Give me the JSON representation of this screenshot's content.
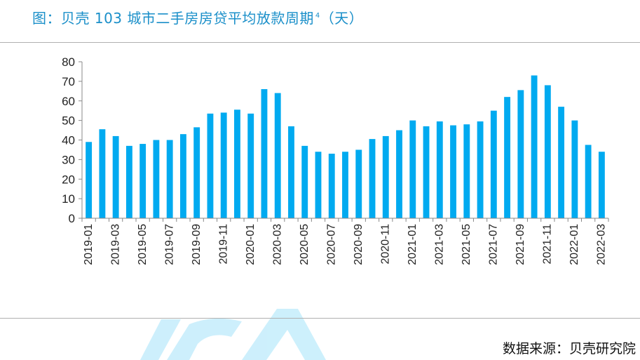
{
  "title": {
    "text": "图：贝壳 103 城市二手房房贷平均放款周期",
    "footnote": "4",
    "unit": "（天）"
  },
  "source": "数据来源：贝壳研究院",
  "colors": {
    "bar": "#00aaf0",
    "title": "#1a8fc9",
    "watermark": "#c8eefc"
  },
  "chart_data": {
    "type": "bar",
    "title": "贝壳 103 城市二手房房贷平均放款周期（天）",
    "xlabel": "",
    "ylabel": "天",
    "ylim": [
      0,
      80
    ],
    "yticks": [
      0,
      10,
      20,
      30,
      40,
      50,
      60,
      70,
      80
    ],
    "grid": false,
    "categories": [
      "2019-01",
      "2019-02",
      "2019-03",
      "2019-04",
      "2019-05",
      "2019-06",
      "2019-07",
      "2019-08",
      "2019-09",
      "2019-10",
      "2019-11",
      "2019-12",
      "2020-01",
      "2020-02",
      "2020-03",
      "2020-04",
      "2020-05",
      "2020-06",
      "2020-07",
      "2020-08",
      "2020-09",
      "2020-10",
      "2020-11",
      "2020-12",
      "2021-01",
      "2021-02",
      "2021-03",
      "2021-04",
      "2021-05",
      "2021-06",
      "2021-07",
      "2021-08",
      "2021-09",
      "2021-10",
      "2021-11",
      "2021-12",
      "2022-01",
      "2022-02",
      "2022-03"
    ],
    "xtick_labels": [
      "2019-01",
      "2019-03",
      "2019-05",
      "2019-07",
      "2019-09",
      "2019-11",
      "2020-01",
      "2020-03",
      "2020-05",
      "2020-07",
      "2020-09",
      "2020-11",
      "2021-01",
      "2021-03",
      "2021-05",
      "2021-07",
      "2021-09",
      "2021-11",
      "2022-01",
      "2022-03"
    ],
    "values": [
      39,
      45.5,
      42,
      37,
      38,
      40,
      40,
      43,
      46.5,
      53.5,
      54,
      55.5,
      53.5,
      66,
      64,
      47,
      37,
      34,
      33,
      34,
      35,
      40.5,
      42,
      45,
      50,
      47,
      49.5,
      47.5,
      48,
      49.5,
      55,
      62,
      65.5,
      73,
      68,
      57,
      50,
      37.5,
      34
    ]
  }
}
